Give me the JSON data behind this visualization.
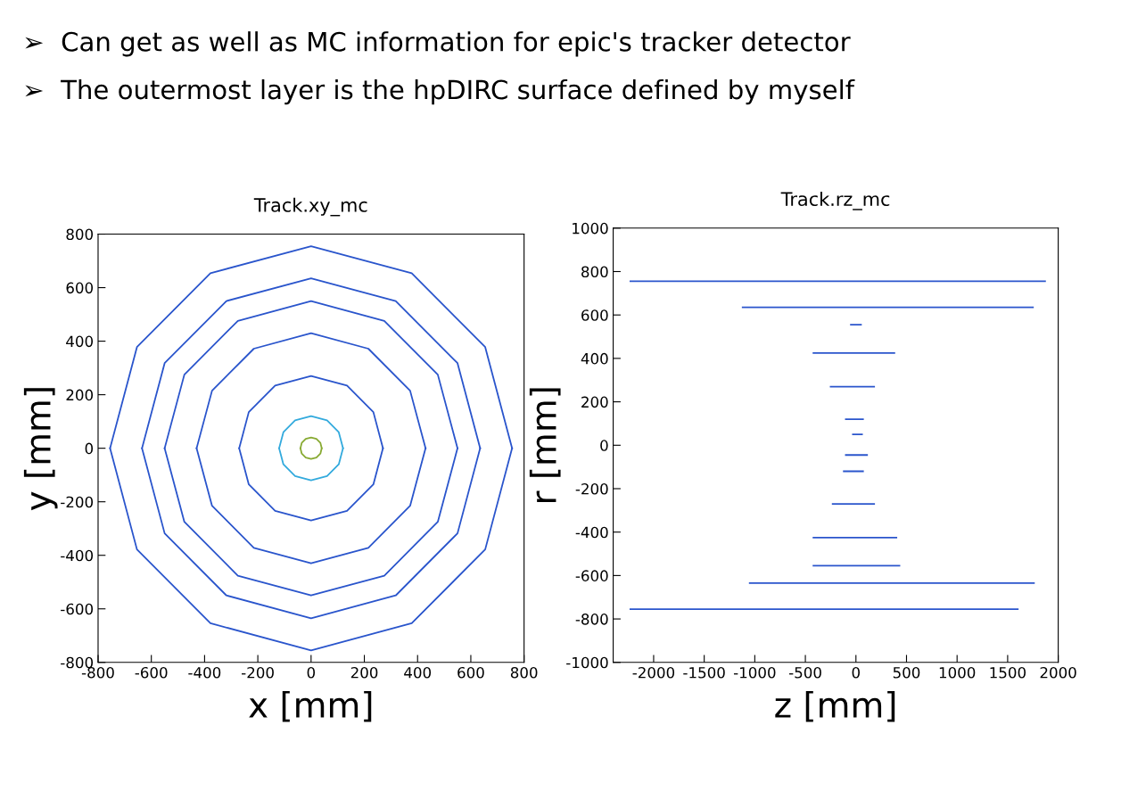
{
  "chart_data": [
    {
      "type": "line",
      "title": "Track.xy_mc",
      "xlabel": "x [mm]",
      "ylabel": "y [mm]",
      "annotations": [
        "➢  Can get as well as MC information for epic's tracker detector",
        "➢  The outermost layer is the hpDIRC surface defined by myself"
      ],
      "xlim": [
        -800,
        800
      ],
      "ylim": [
        -800,
        800
      ],
      "xticks": [
        -800,
        -600,
        -400,
        -200,
        0,
        200,
        400,
        600,
        800
      ],
      "yticks": [
        -800,
        -600,
        -400,
        -200,
        0,
        200,
        400,
        600,
        800
      ],
      "grid": false,
      "marker": "none",
      "line_style": "solid",
      "series": [
        {
          "color": "#88aa33",
          "x": [
            -40,
            -35,
            -20,
            0,
            20,
            35,
            40
          ],
          "values": [
            0,
            20,
            35,
            40,
            35,
            20,
            0
          ]
        },
        {
          "color": "#88aa33",
          "x": [
            -40,
            -35,
            -20,
            0,
            20,
            35,
            40
          ],
          "values": [
            0,
            -20,
            -35,
            -40,
            -35,
            -20,
            0
          ]
        },
        {
          "color": "#33aadd",
          "x": [
            -120,
            -104,
            -60,
            0,
            60,
            104,
            120
          ],
          "values": [
            0,
            60,
            104,
            120,
            104,
            60,
            0
          ]
        },
        {
          "color": "#33aadd",
          "x": [
            -120,
            -104,
            -60,
            0,
            60,
            104,
            120
          ],
          "values": [
            0,
            -60,
            -104,
            -120,
            -104,
            -60,
            0
          ]
        },
        {
          "color": "#2a55cc",
          "x": [
            -270,
            -234,
            -135,
            0,
            135,
            234,
            270
          ],
          "values": [
            0,
            135,
            234,
            270,
            234,
            135,
            0
          ]
        },
        {
          "color": "#2a55cc",
          "x": [
            -270,
            -234,
            -135,
            0,
            135,
            234,
            270
          ],
          "values": [
            0,
            -135,
            -234,
            -270,
            -234,
            -135,
            0
          ]
        },
        {
          "color": "#2a55cc",
          "x": [
            -430,
            -372,
            -215,
            0,
            215,
            372,
            430
          ],
          "values": [
            0,
            215,
            372,
            430,
            372,
            215,
            0
          ]
        },
        {
          "color": "#2a55cc",
          "x": [
            -430,
            -372,
            -215,
            0,
            215,
            372,
            430
          ],
          "values": [
            0,
            -215,
            -372,
            -430,
            -372,
            -215,
            0
          ]
        },
        {
          "color": "#2a55cc",
          "x": [
            -550,
            -476,
            -275,
            0,
            275,
            476,
            550
          ],
          "values": [
            0,
            275,
            476,
            550,
            476,
            275,
            0
          ]
        },
        {
          "color": "#2a55cc",
          "x": [
            -550,
            -476,
            -275,
            0,
            275,
            476,
            550
          ],
          "values": [
            0,
            -275,
            -476,
            -550,
            -476,
            -275,
            0
          ]
        },
        {
          "color": "#2a55cc",
          "x": [
            -635,
            -550,
            -318,
            0,
            318,
            550,
            635
          ],
          "values": [
            0,
            318,
            550,
            635,
            550,
            318,
            0
          ]
        },
        {
          "color": "#2a55cc",
          "x": [
            -635,
            -550,
            -318,
            0,
            318,
            550,
            635
          ],
          "values": [
            0,
            -318,
            -550,
            -635,
            -550,
            -318,
            0
          ]
        },
        {
          "color": "#2a55cc",
          "x": [
            -755,
            -654,
            -378,
            0,
            378,
            654,
            755
          ],
          "values": [
            0,
            378,
            654,
            755,
            654,
            378,
            0
          ]
        },
        {
          "color": "#2a55cc",
          "x": [
            -755,
            -654,
            -378,
            0,
            378,
            654,
            755
          ],
          "values": [
            0,
            -378,
            -654,
            -755,
            -654,
            -378,
            0
          ]
        }
      ]
    },
    {
      "type": "line",
      "title": "Track.rz_mc",
      "xlabel": "z [mm]",
      "ylabel": "r [mm]",
      "xlim": [
        -2400,
        2000
      ],
      "ylim": [
        -1000,
        1000
      ],
      "xticks": [
        -2000,
        -1500,
        -1000,
        -500,
        0,
        500,
        1000,
        1500,
        2000
      ],
      "yticks": [
        -1000,
        -800,
        -600,
        -400,
        -200,
        0,
        200,
        400,
        600,
        800,
        1000
      ],
      "grid": false,
      "marker": "none",
      "line_style": "solid",
      "series": [
        {
          "color": "#2a55cc",
          "x": [
            -2230,
            1870
          ],
          "values": [
            755,
            755
          ]
        },
        {
          "color": "#2a55cc",
          "x": [
            -1120,
            1750
          ],
          "values": [
            635,
            635
          ]
        },
        {
          "color": "#2a55cc",
          "x": [
            -50,
            50
          ],
          "values": [
            555,
            555
          ]
        },
        {
          "color": "#2a55cc",
          "x": [
            -420,
            380
          ],
          "values": [
            425,
            425
          ]
        },
        {
          "color": "#2a55cc",
          "x": [
            -250,
            180
          ],
          "values": [
            270,
            270
          ]
        },
        {
          "color": "#2a55cc",
          "x": [
            -100,
            70
          ],
          "values": [
            120,
            120
          ]
        },
        {
          "color": "#2a55cc",
          "x": [
            -30,
            60
          ],
          "values": [
            50,
            50
          ]
        },
        {
          "color": "#2a55cc",
          "x": [
            -100,
            110
          ],
          "values": [
            -45,
            -45
          ]
        },
        {
          "color": "#2a55cc",
          "x": [
            -120,
            70
          ],
          "values": [
            -120,
            -120
          ]
        },
        {
          "color": "#2a55cc",
          "x": [
            -230,
            180
          ],
          "values": [
            -270,
            -270
          ]
        },
        {
          "color": "#2a55cc",
          "x": [
            -420,
            400
          ],
          "values": [
            -425,
            -425
          ]
        },
        {
          "color": "#2a55cc",
          "x": [
            -420,
            430
          ],
          "values": [
            -555,
            -555
          ]
        },
        {
          "color": "#2a55cc",
          "x": [
            -1050,
            1760
          ],
          "values": [
            -635,
            -635
          ]
        },
        {
          "color": "#2a55cc",
          "x": [
            -2230,
            1600
          ],
          "values": [
            -755,
            -755
          ]
        }
      ]
    }
  ]
}
